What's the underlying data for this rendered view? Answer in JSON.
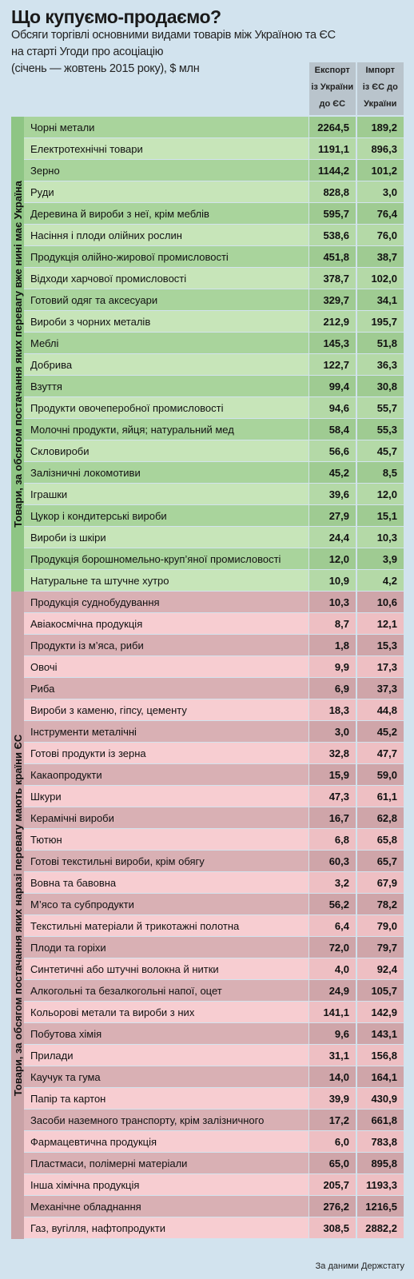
{
  "header": {
    "title": "Що купуємо-продаємо?",
    "subtitle": [
      "Обсяги торгівлі основними видами товарів між Україною та ЄС",
      "на старті Угоди про асоціацію",
      "(січень — жовтень 2015 року), $ млн"
    ]
  },
  "columns": [
    [
      "Експорт",
      "із України",
      "до ЄС"
    ],
    [
      "Імпорт",
      "із ЄС до",
      "України"
    ]
  ],
  "groups": [
    {
      "label": "Товари, за обсягом постачання яких перевагу вже нині має Україна",
      "rows": [
        [
          "Чорні метали",
          "2264,5",
          "189,2"
        ],
        [
          "Електротехнічні товари",
          "1191,1",
          "896,3"
        ],
        [
          "Зерно",
          "1144,2",
          "101,2"
        ],
        [
          "Руди",
          "828,8",
          "3,0"
        ],
        [
          "Деревина й вироби з неї, крім меблів",
          "595,7",
          "76,4"
        ],
        [
          "Насіння і плоди олійних рослин",
          "538,6",
          "76,0"
        ],
        [
          "Продукція олійно-жирової промисловості",
          "451,8",
          "38,7"
        ],
        [
          "Відходи харчової промисловості",
          "378,7",
          "102,0"
        ],
        [
          "Готовий одяг та аксесуари",
          "329,7",
          "34,1"
        ],
        [
          "Вироби з чорних металів",
          "212,9",
          "195,7"
        ],
        [
          "Меблі",
          "145,3",
          "51,8"
        ],
        [
          "Добрива",
          "122,7",
          "36,3"
        ],
        [
          "Взуття",
          "99,4",
          "30,8"
        ],
        [
          "Продукти овочеперобної промисловості",
          "94,6",
          "55,7"
        ],
        [
          "Молочні продукти, яйця; натуральний мед",
          "58,4",
          "55,3"
        ],
        [
          "Скловироби",
          "56,6",
          "45,7"
        ],
        [
          "Залізничні локомотиви",
          "45,2",
          "8,5"
        ],
        [
          "Іграшки",
          "39,6",
          "12,0"
        ],
        [
          "Цукор і кондитерські вироби",
          "27,9",
          "15,1"
        ],
        [
          "Вироби із шкіри",
          "24,4",
          "10,3"
        ],
        [
          "Продукція борошномельно-круп’яної промисловості",
          "12,0",
          "3,9"
        ],
        [
          "Натуральне та штучне хутро",
          "10,9",
          "4,2"
        ]
      ]
    },
    {
      "label": "Товари, за обсягом постачання яких наразі перевагу мають країни ЄС",
      "rows": [
        [
          "Продукція суднобудування",
          "10,3",
          "10,6"
        ],
        [
          "Авіакосмічна продукція",
          "8,7",
          "12,1"
        ],
        [
          "Продукти із м’яса, риби",
          "1,8",
          "15,3"
        ],
        [
          "Овочі",
          "9,9",
          "17,3"
        ],
        [
          "Риба",
          "6,9",
          "37,3"
        ],
        [
          "Вироби з каменю, гіпсу, цементу",
          "18,3",
          "44,8"
        ],
        [
          "Інструменти металічні",
          "3,0",
          "45,2"
        ],
        [
          "Готові продукти із зерна",
          "32,8",
          "47,7"
        ],
        [
          "Какаопродукти",
          "15,9",
          "59,0"
        ],
        [
          "Шкури",
          "47,3",
          "61,1"
        ],
        [
          "Керамічні вироби",
          "16,7",
          "62,8"
        ],
        [
          "Тютюн",
          "6,8",
          "65,8"
        ],
        [
          "Готові текстильні вироби, крім обягу",
          "60,3",
          "65,7"
        ],
        [
          "Вовна та бавовна",
          "3,2",
          "67,9"
        ],
        [
          "М’ясо та субпродукти",
          "56,2",
          "78,2"
        ],
        [
          "Текстильні матеріали й трикотажні полотна",
          "6,4",
          "79,0"
        ],
        [
          "Плоди та горіхи",
          "72,0",
          "79,7"
        ],
        [
          "Синтетичні або штучні волокна й нитки",
          "4,0",
          "92,4"
        ],
        [
          "Алкогольні та безалкогольні напої, оцет",
          "24,9",
          "105,7"
        ],
        [
          "Кольорові метали та вироби з них",
          "141,1",
          "142,9"
        ],
        [
          "Побутова хімія",
          "9,6",
          "143,1"
        ],
        [
          "Прилади",
          "31,1",
          "156,8"
        ],
        [
          "Каучук та гума",
          "14,0",
          "164,1"
        ],
        [
          "Папір та картон",
          "39,9",
          "430,9"
        ],
        [
          "Засоби наземного транспорту, крім залізничного",
          "17,2",
          "661,8"
        ],
        [
          "Фармацевтична продукція",
          "6,0",
          "783,8"
        ],
        [
          "Пластмаси, полімерні матеріали",
          "65,0",
          "895,8"
        ],
        [
          "Інша хімічна продукція",
          "205,7",
          "1193,3"
        ],
        [
          "Механічне обладнання",
          "276,2",
          "1216,5"
        ],
        [
          "Газ, вугілля, нафтопродукти",
          "308,5",
          "2882,2"
        ]
      ]
    }
  ],
  "footer": "За даними Держстату"
}
